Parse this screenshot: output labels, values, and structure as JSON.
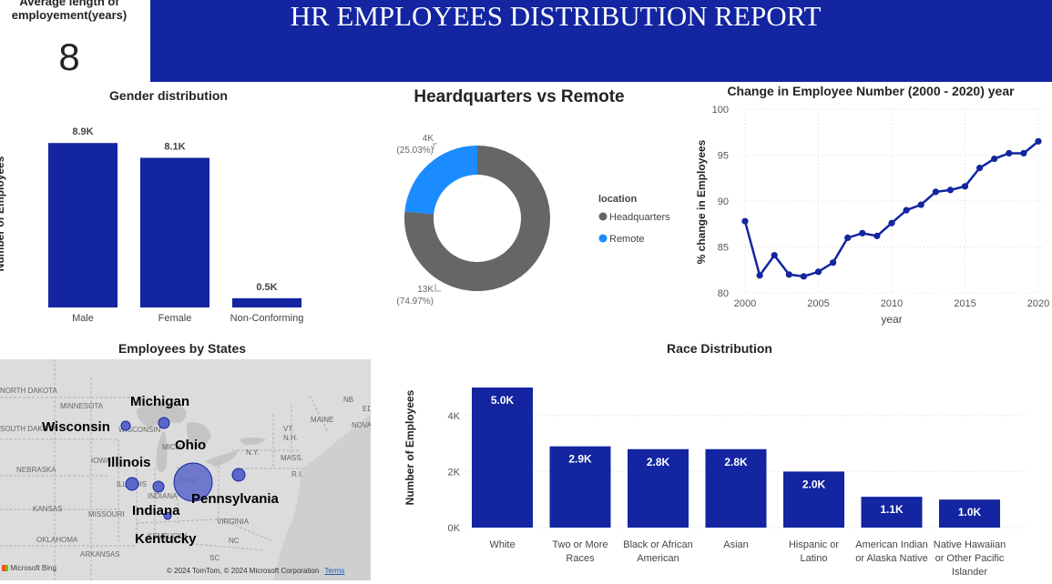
{
  "kpi": {
    "label": "Average length of employement(years)",
    "value": "8"
  },
  "banner": {
    "title": "HR EMPLOYEES DISTRIBUTION REPORT"
  },
  "colors": {
    "accent": "#1325a0",
    "headquarters": "#666666",
    "remote": "#1a8cff",
    "map_bubble": "#5b67c9"
  },
  "chart_data": [
    {
      "id": "gender",
      "type": "bar",
      "title": "Gender distribution",
      "ylabel": "Number of Employees",
      "categories": [
        "Male",
        "Female",
        "Non-Conforming"
      ],
      "values": [
        8.9,
        8.1,
        0.5
      ],
      "data_labels": [
        "8.9K",
        "8.1K",
        "0.5K"
      ],
      "unit": "K",
      "ylim": [
        0,
        9.6
      ]
    },
    {
      "id": "location",
      "type": "pie",
      "donut": true,
      "title": "Heardquarters vs Remote",
      "legend_title": "location",
      "legend_position": "right",
      "slices": [
        {
          "label": "Headquarters",
          "value": 13000,
          "value_label": "13K",
          "percent_label": "(74.97%)"
        },
        {
          "label": "Remote",
          "value": 4000,
          "value_label": "4K",
          "percent_label": "(25.03%)"
        }
      ]
    },
    {
      "id": "trend",
      "type": "line",
      "title": "Change in Employee Number (2000 - 2020) year",
      "xlabel": "year",
      "ylabel": "% change in Employees",
      "x": [
        2000,
        2001,
        2002,
        2003,
        2004,
        2005,
        2006,
        2007,
        2008,
        2009,
        2010,
        2011,
        2012,
        2013,
        2014,
        2015,
        2016,
        2017,
        2018,
        2019,
        2020
      ],
      "y": [
        87.8,
        81.9,
        84.1,
        82.0,
        81.8,
        82.3,
        83.3,
        86.0,
        86.5,
        86.2,
        87.6,
        89.0,
        89.6,
        91.0,
        91.2,
        91.6,
        93.6,
        94.6,
        95.2,
        95.2,
        96.5
      ],
      "xticks": [
        2000,
        2005,
        2010,
        2015,
        2020
      ],
      "yticks": [
        80,
        85,
        90,
        95,
        100
      ],
      "ylim": [
        80,
        100
      ],
      "grid": true
    },
    {
      "id": "race",
      "type": "bar",
      "title": "Race Distribution",
      "ylabel": "Number of Employees",
      "categories": [
        [
          "White"
        ],
        [
          "Two or More",
          "Races"
        ],
        [
          "Black or African",
          "American"
        ],
        [
          "Asian"
        ],
        [
          "Hispanic or",
          "Latino"
        ],
        [
          "American Indian",
          "or Alaska Native"
        ],
        [
          "Native Hawaiian",
          "or Other Pacific",
          "Islander"
        ]
      ],
      "values": [
        5.0,
        2.9,
        2.8,
        2.8,
        2.0,
        1.1,
        1.0
      ],
      "data_labels": [
        "5.0K",
        "2.9K",
        "2.8K",
        "2.8K",
        "2.0K",
        "1.1K",
        "1.0K"
      ],
      "yticks": [
        0,
        2,
        4
      ],
      "ytick_labels": [
        "0K",
        "2K",
        "4K"
      ],
      "ylim": [
        0,
        5.0
      ],
      "grid": true
    }
  ],
  "map": {
    "title": "Employees by States",
    "region_labels": [
      "NORTH DAKOTA",
      "MINNESOTA",
      "SOUTH DAKOTA",
      "WISCONSIN",
      "NEBRASKA",
      "IOWA",
      "ILLINOIS",
      "INDIANA",
      "OHIO",
      "KANSAS",
      "MISSOURI",
      "KENTUCKY",
      "OKLAHOMA",
      "ARKANSAS",
      "VIRGINIA",
      "MICH",
      "N.Y.",
      "VT.",
      "N.H.",
      "MAINE",
      "MASS.",
      "R.I.",
      "NB",
      "NOVA",
      "ED",
      "SC",
      "NC"
    ],
    "states": [
      {
        "name": "Michigan"
      },
      {
        "name": "Wisconsin"
      },
      {
        "name": "Ohio"
      },
      {
        "name": "Illinois"
      },
      {
        "name": "Pennsylvania"
      },
      {
        "name": "Indiana"
      },
      {
        "name": "Kentucky"
      }
    ],
    "attribution": "© 2024 TomTom, © 2024 Microsoft Corporation",
    "terms": "Terms",
    "bing": "Microsoft Bing"
  }
}
